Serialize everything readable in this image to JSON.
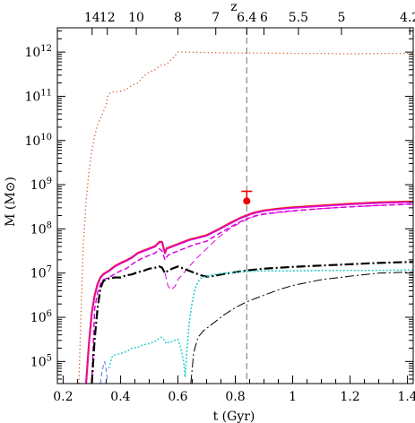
{
  "chart_data": {
    "type": "line",
    "xlabel": "t (Gyr)",
    "ylabel": "M (M⊙)",
    "top_axis_label": "z",
    "xlim": [
      0.18,
      1.42
    ],
    "ylim_log10": [
      4.5,
      12.55
    ],
    "y_scale": "log",
    "grid": false,
    "legend": "none",
    "x_ticks": [
      {
        "value": 0.2,
        "label": "0.2"
      },
      {
        "value": 0.4,
        "label": "0.4"
      },
      {
        "value": 0.6,
        "label": "0.6"
      },
      {
        "value": 0.8,
        "label": "0.8"
      },
      {
        "value": 1.0,
        "label": "1"
      },
      {
        "value": 1.2,
        "label": "1.2"
      },
      {
        "value": 1.4,
        "label": "1.4"
      }
    ],
    "y_ticks": [
      {
        "log10": 5,
        "base": "10",
        "exp": "5"
      },
      {
        "log10": 6,
        "base": "10",
        "exp": "6"
      },
      {
        "log10": 7,
        "base": "10",
        "exp": "7"
      },
      {
        "log10": 8,
        "base": "10",
        "exp": "8"
      },
      {
        "log10": 9,
        "base": "10",
        "exp": "9"
      },
      {
        "log10": 10,
        "base": "10",
        "exp": "10"
      },
      {
        "log10": 11,
        "base": "10",
        "exp": "11"
      },
      {
        "log10": 12,
        "base": "10",
        "exp": "12"
      }
    ],
    "top_ticks": [
      {
        "t": 0.301,
        "label": "14"
      },
      {
        "t": 0.354,
        "label": "12"
      },
      {
        "t": 0.455,
        "label": "10"
      },
      {
        "t": 0.6,
        "label": "8"
      },
      {
        "t": 0.732,
        "label": "7"
      },
      {
        "t": 0.84,
        "label": "6.4"
      },
      {
        "t": 0.9,
        "label": "6"
      },
      {
        "t": 1.02,
        "label": "5.5"
      },
      {
        "t": 1.17,
        "label": "5"
      },
      {
        "t": 1.408,
        "label": "4.2"
      }
    ],
    "reference_line_t": 0.84,
    "observation": {
      "t": 0.84,
      "log10M": 8.63,
      "err_upper_log10M": 8.85,
      "color": "#ee0000"
    },
    "series": [
      {
        "color": "#cc5522",
        "dash": "1.2 3",
        "width": 1.3,
        "points": [
          [
            0.255,
            4.5
          ],
          [
            0.262,
            6.0
          ],
          [
            0.27,
            7.6
          ],
          [
            0.28,
            8.6
          ],
          [
            0.29,
            9.3
          ],
          [
            0.3,
            9.75
          ],
          [
            0.31,
            10.1
          ],
          [
            0.32,
            10.35
          ],
          [
            0.33,
            10.5
          ],
          [
            0.34,
            10.65
          ],
          [
            0.35,
            10.8
          ],
          [
            0.355,
            11.0
          ],
          [
            0.36,
            11.05
          ],
          [
            0.37,
            11.1
          ],
          [
            0.38,
            11.1
          ],
          [
            0.4,
            11.11
          ],
          [
            0.42,
            11.15
          ],
          [
            0.44,
            11.25
          ],
          [
            0.46,
            11.3
          ],
          [
            0.48,
            11.45
          ],
          [
            0.5,
            11.55
          ],
          [
            0.52,
            11.6
          ],
          [
            0.54,
            11.7
          ],
          [
            0.56,
            11.72
          ],
          [
            0.58,
            11.85
          ],
          [
            0.6,
            12.0
          ],
          [
            0.62,
            12.0
          ],
          [
            0.7,
            11.99
          ],
          [
            0.8,
            11.98
          ],
          [
            0.9,
            11.98
          ],
          [
            1.0,
            11.97
          ],
          [
            1.1,
            11.97
          ],
          [
            1.2,
            11.96
          ],
          [
            1.3,
            11.97
          ],
          [
            1.4,
            11.97
          ],
          [
            1.42,
            11.97
          ]
        ]
      },
      {
        "color": "#dd00dd",
        "dash": "",
        "width": 2.2,
        "points": [
          [
            0.28,
            4.5
          ],
          [
            0.29,
            5.4
          ],
          [
            0.3,
            6.1
          ],
          [
            0.31,
            6.5
          ],
          [
            0.32,
            6.75
          ],
          [
            0.33,
            6.9
          ],
          [
            0.34,
            6.97
          ],
          [
            0.36,
            7.05
          ],
          [
            0.38,
            7.15
          ],
          [
            0.4,
            7.22
          ],
          [
            0.42,
            7.28
          ],
          [
            0.44,
            7.35
          ],
          [
            0.46,
            7.45
          ],
          [
            0.48,
            7.5
          ],
          [
            0.5,
            7.55
          ],
          [
            0.52,
            7.6
          ],
          [
            0.535,
            7.7
          ],
          [
            0.545,
            7.7
          ],
          [
            0.555,
            7.45
          ],
          [
            0.56,
            7.55
          ],
          [
            0.58,
            7.6
          ],
          [
            0.6,
            7.65
          ],
          [
            0.62,
            7.7
          ],
          [
            0.64,
            7.75
          ],
          [
            0.66,
            7.78
          ],
          [
            0.7,
            7.85
          ],
          [
            0.74,
            7.98
          ],
          [
            0.78,
            8.12
          ],
          [
            0.82,
            8.25
          ],
          [
            0.86,
            8.35
          ],
          [
            0.9,
            8.41
          ],
          [
            0.95,
            8.45
          ],
          [
            1.0,
            8.48
          ],
          [
            1.1,
            8.52
          ],
          [
            1.2,
            8.56
          ],
          [
            1.3,
            8.59
          ],
          [
            1.4,
            8.61
          ],
          [
            1.42,
            8.61
          ]
        ]
      },
      {
        "color": "#ee2020",
        "dash": "",
        "width": 1.0,
        "points": [
          [
            0.28,
            4.5
          ],
          [
            0.29,
            5.42
          ],
          [
            0.3,
            6.12
          ],
          [
            0.31,
            6.52
          ],
          [
            0.32,
            6.77
          ],
          [
            0.33,
            6.92
          ],
          [
            0.34,
            6.99
          ],
          [
            0.36,
            7.07
          ],
          [
            0.38,
            7.17
          ],
          [
            0.4,
            7.24
          ],
          [
            0.42,
            7.3
          ],
          [
            0.44,
            7.37
          ],
          [
            0.46,
            7.47
          ],
          [
            0.48,
            7.52
          ],
          [
            0.5,
            7.57
          ],
          [
            0.52,
            7.62
          ],
          [
            0.535,
            7.72
          ],
          [
            0.545,
            7.72
          ],
          [
            0.555,
            7.47
          ],
          [
            0.56,
            7.57
          ],
          [
            0.58,
            7.62
          ],
          [
            0.6,
            7.67
          ],
          [
            0.62,
            7.72
          ],
          [
            0.64,
            7.77
          ],
          [
            0.66,
            7.8
          ],
          [
            0.7,
            7.87
          ],
          [
            0.74,
            8.0
          ],
          [
            0.78,
            8.14
          ],
          [
            0.82,
            8.27
          ],
          [
            0.86,
            8.37
          ],
          [
            0.9,
            8.43
          ],
          [
            0.95,
            8.47
          ],
          [
            1.0,
            8.5
          ],
          [
            1.1,
            8.54
          ],
          [
            1.2,
            8.58
          ],
          [
            1.3,
            8.61
          ],
          [
            1.4,
            8.63
          ],
          [
            1.42,
            8.63
          ]
        ]
      },
      {
        "color": "#dd00dd",
        "dash": "6 3",
        "width": 1.5,
        "points": [
          [
            0.3,
            4.5
          ],
          [
            0.31,
            6.2
          ],
          [
            0.32,
            6.55
          ],
          [
            0.33,
            6.75
          ],
          [
            0.34,
            6.85
          ],
          [
            0.36,
            6.9
          ],
          [
            0.38,
            6.98
          ],
          [
            0.4,
            7.05
          ],
          [
            0.42,
            7.1
          ],
          [
            0.44,
            7.2
          ],
          [
            0.46,
            7.28
          ],
          [
            0.48,
            7.35
          ],
          [
            0.5,
            7.4
          ],
          [
            0.52,
            7.45
          ],
          [
            0.535,
            7.55
          ],
          [
            0.545,
            7.5
          ],
          [
            0.555,
            7.3
          ],
          [
            0.565,
            7.4
          ],
          [
            0.58,
            7.45
          ],
          [
            0.6,
            7.5
          ],
          [
            0.62,
            7.55
          ],
          [
            0.64,
            7.6
          ],
          [
            0.66,
            7.65
          ],
          [
            0.7,
            7.72
          ],
          [
            0.74,
            7.88
          ],
          [
            0.78,
            8.03
          ],
          [
            0.82,
            8.17
          ],
          [
            0.86,
            8.28
          ],
          [
            0.9,
            8.34
          ],
          [
            0.95,
            8.38
          ],
          [
            1.0,
            8.41
          ],
          [
            1.1,
            8.46
          ],
          [
            1.2,
            8.5
          ],
          [
            1.3,
            8.53
          ],
          [
            1.4,
            8.56
          ],
          [
            1.42,
            8.56
          ]
        ]
      },
      {
        "color": "#dd00dd",
        "dash": "7 4",
        "width": 1.0,
        "points": [
          [
            0.555,
            7.0
          ],
          [
            0.565,
            6.72
          ],
          [
            0.575,
            6.62
          ],
          [
            0.59,
            6.7
          ],
          [
            0.6,
            6.85
          ],
          [
            0.62,
            7.0
          ],
          [
            0.64,
            7.15
          ],
          [
            0.66,
            7.3
          ],
          [
            0.7,
            7.55
          ],
          [
            0.74,
            7.8
          ],
          [
            0.78,
            8.0
          ],
          [
            0.82,
            8.15
          ],
          [
            0.86,
            8.27
          ],
          [
            0.9,
            8.33
          ],
          [
            1.0,
            8.4
          ],
          [
            1.1,
            8.46
          ],
          [
            1.2,
            8.5
          ],
          [
            1.3,
            8.53
          ],
          [
            1.4,
            8.55
          ],
          [
            1.42,
            8.55
          ]
        ]
      },
      {
        "color": "#000000",
        "dash": "10 3 2 3",
        "width": 2.2,
        "points": [
          [
            0.3,
            4.5
          ],
          [
            0.31,
            5.5
          ],
          [
            0.32,
            6.2
          ],
          [
            0.33,
            6.65
          ],
          [
            0.34,
            6.82
          ],
          [
            0.36,
            6.88
          ],
          [
            0.38,
            6.9
          ],
          [
            0.4,
            6.9
          ],
          [
            0.42,
            6.95
          ],
          [
            0.44,
            6.97
          ],
          [
            0.46,
            7.02
          ],
          [
            0.48,
            7.05
          ],
          [
            0.5,
            7.1
          ],
          [
            0.52,
            7.12
          ],
          [
            0.535,
            7.15
          ],
          [
            0.545,
            7.12
          ],
          [
            0.555,
            7.0
          ],
          [
            0.565,
            7.05
          ],
          [
            0.58,
            7.1
          ],
          [
            0.6,
            7.15
          ],
          [
            0.62,
            7.1
          ],
          [
            0.64,
            7.05
          ],
          [
            0.66,
            7.0
          ],
          [
            0.68,
            6.95
          ],
          [
            0.7,
            6.92
          ],
          [
            0.72,
            6.93
          ],
          [
            0.76,
            6.98
          ],
          [
            0.8,
            7.02
          ],
          [
            0.84,
            7.06
          ],
          [
            0.9,
            7.1
          ],
          [
            1.0,
            7.14
          ],
          [
            1.1,
            7.17
          ],
          [
            1.2,
            7.2
          ],
          [
            1.3,
            7.23
          ],
          [
            1.4,
            7.25
          ],
          [
            1.42,
            7.25
          ]
        ]
      },
      {
        "color": "#000000",
        "dash": "10 3 2 3",
        "width": 1.0,
        "points": [
          [
            0.645,
            4.5
          ],
          [
            0.655,
            5.2
          ],
          [
            0.67,
            5.55
          ],
          [
            0.69,
            5.7
          ],
          [
            0.72,
            5.85
          ],
          [
            0.76,
            6.05
          ],
          [
            0.8,
            6.22
          ],
          [
            0.84,
            6.35
          ],
          [
            0.9,
            6.5
          ],
          [
            0.95,
            6.62
          ],
          [
            1.0,
            6.72
          ],
          [
            1.1,
            6.85
          ],
          [
            1.2,
            6.93
          ],
          [
            1.3,
            7.0
          ],
          [
            1.4,
            7.02
          ],
          [
            1.42,
            7.02
          ]
        ]
      },
      {
        "color": "#22cccc",
        "dash": "2 2",
        "width": 1.6,
        "points": [
          [
            0.625,
            4.65
          ],
          [
            0.632,
            5.3
          ],
          [
            0.64,
            5.9
          ],
          [
            0.65,
            6.35
          ],
          [
            0.66,
            6.65
          ],
          [
            0.67,
            6.8
          ],
          [
            0.68,
            6.88
          ],
          [
            0.7,
            6.93
          ],
          [
            0.74,
            6.98
          ],
          [
            0.8,
            7.02
          ],
          [
            0.9,
            7.05
          ],
          [
            1.0,
            7.05
          ],
          [
            1.1,
            7.06
          ],
          [
            1.2,
            7.06
          ],
          [
            1.3,
            7.06
          ],
          [
            1.4,
            7.07
          ],
          [
            1.42,
            7.07
          ]
        ]
      },
      {
        "color": "#22cccc",
        "dash": "2 2",
        "width": 1.4,
        "points": [
          [
            0.36,
            4.85
          ],
          [
            0.37,
            5.1
          ],
          [
            0.38,
            5.15
          ],
          [
            0.4,
            5.18
          ],
          [
            0.42,
            5.22
          ],
          [
            0.44,
            5.3
          ],
          [
            0.46,
            5.32
          ],
          [
            0.48,
            5.38
          ],
          [
            0.5,
            5.4
          ],
          [
            0.52,
            5.45
          ],
          [
            0.54,
            5.55
          ],
          [
            0.55,
            5.5
          ],
          [
            0.56,
            5.4
          ],
          [
            0.57,
            5.45
          ],
          [
            0.58,
            5.45
          ],
          [
            0.59,
            5.48
          ],
          [
            0.6,
            5.5
          ],
          [
            0.61,
            5.3
          ],
          [
            0.62,
            5.0
          ],
          [
            0.625,
            4.65
          ]
        ]
      },
      {
        "color": "#5577ee",
        "dash": "5 3",
        "width": 1.0,
        "points": [
          [
            0.33,
            4.5
          ],
          [
            0.335,
            4.75
          ],
          [
            0.34,
            4.9
          ],
          [
            0.345,
            5.0
          ],
          [
            0.35,
            4.8
          ],
          [
            0.355,
            4.55
          ]
        ]
      }
    ]
  }
}
